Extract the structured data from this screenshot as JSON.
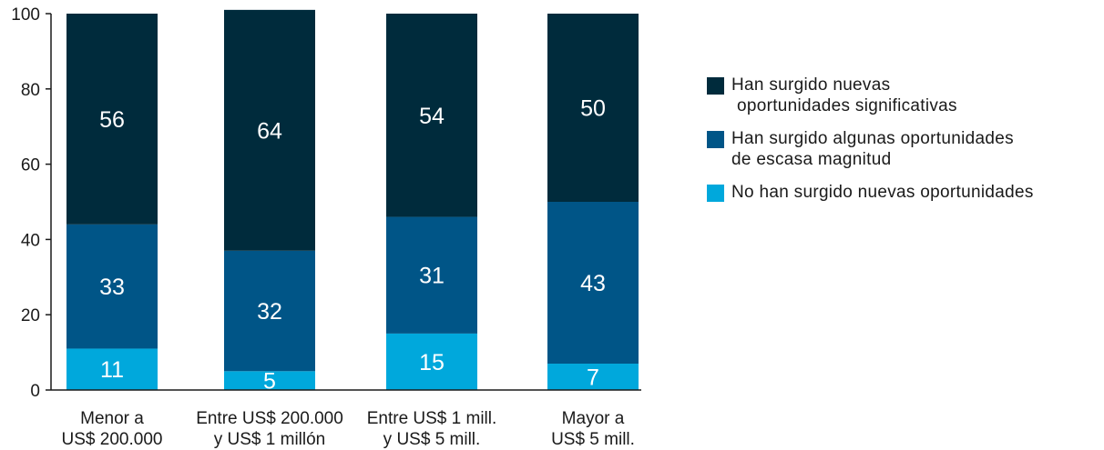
{
  "chart_data": {
    "type": "bar",
    "stacked": true,
    "categories": [
      [
        "Menor a",
        "US$ 200.000"
      ],
      [
        "Entre US$ 200.000",
        "y US$ 1 millón"
      ],
      [
        "Entre US$ 1 mill.",
        "y US$ 5 mill."
      ],
      [
        "Mayor a",
        "US$ 5 mill."
      ]
    ],
    "series": [
      {
        "name": "No han surgido nuevas oportunidades",
        "color": "#00a8dc",
        "values": [
          11,
          5,
          15,
          7
        ]
      },
      {
        "name": "Han surgido algunas oportunidades de escasa magnitud",
        "color": "#005587",
        "values": [
          33,
          32,
          31,
          43
        ]
      },
      {
        "name": "Han surgido nuevas oportunidades significativas",
        "color": "#002b3c",
        "values": [
          56,
          64,
          54,
          50
        ]
      }
    ],
    "ylim": [
      0,
      100
    ],
    "yticks": [
      0,
      20,
      40,
      60,
      80,
      100
    ],
    "grid": false,
    "legend_position": "right"
  },
  "legend": [
    {
      "color": "#002b3c",
      "lines": [
        "Han surgido nuevas",
        "oportunidades significativas"
      ]
    },
    {
      "color": "#005587",
      "lines": [
        "Han surgido algunas oportunidades",
        "de escasa magnitud"
      ]
    },
    {
      "color": "#00a8dc",
      "lines": [
        "No han surgido nuevas oportunidades"
      ]
    }
  ]
}
